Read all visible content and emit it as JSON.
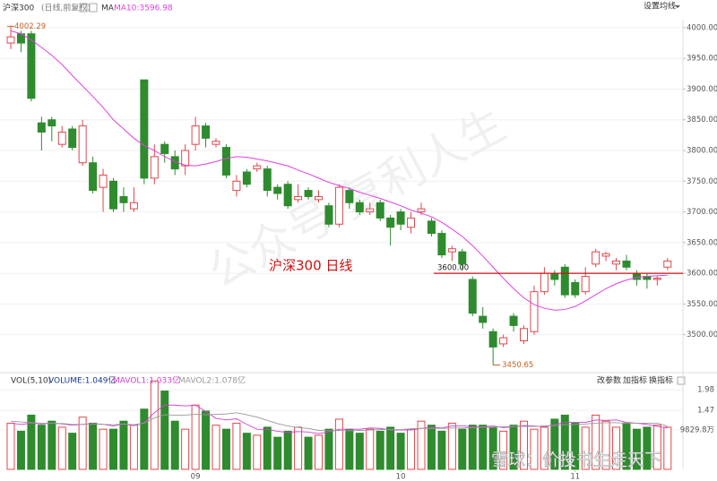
{
  "chart_data": [
    {
      "type": "candlestick",
      "title": "沪深300",
      "subtitle": "(日线,前复权)",
      "indicator": "MA",
      "annotation": "沪深300  日线",
      "categories": [
        null,
        null,
        null,
        null,
        null,
        null,
        null,
        null,
        null,
        null,
        null,
        null,
        null,
        null,
        null,
        null,
        null,
        null,
        "09",
        null,
        null,
        null,
        null,
        null,
        null,
        null,
        null,
        null,
        null,
        null,
        null,
        null,
        null,
        null,
        null,
        null,
        null,
        null,
        "10",
        null,
        null,
        null,
        null,
        null,
        null,
        null,
        null,
        null,
        null,
        null,
        null,
        null,
        null,
        null,
        null,
        "11",
        null,
        null,
        null,
        null,
        null,
        null,
        null,
        null,
        null
      ],
      "open": [
        3975,
        3990,
        3990,
        3845,
        3850,
        3810,
        3835,
        3780,
        3780,
        3740,
        3750,
        3725,
        3705,
        3915,
        3755,
        3810,
        3790,
        3775,
        3810,
        3840,
        3810,
        3805,
        3735,
        3765,
        3770,
        3770,
        3740,
        3745,
        3720,
        3735,
        3720,
        3710,
        3680,
        3735,
        3715,
        3700,
        3715,
        3690,
        3700,
        3675,
        3700,
        3685,
        3665,
        3635,
        3635,
        3590,
        3530,
        3505,
        3485,
        3530,
        3490,
        3505,
        3570,
        3600,
        3610,
        3585,
        3570,
        3615,
        3628,
        3615,
        3620,
        3600,
        3595,
        3590,
        3610
      ],
      "high": [
        4002.29,
        3995,
        3995,
        3855,
        3855,
        3840,
        3840,
        3850,
        3790,
        3770,
        3755,
        3740,
        3740,
        3915,
        3810,
        3815,
        3800,
        3810,
        3855,
        3845,
        3820,
        3810,
        3760,
        3770,
        3780,
        3775,
        3745,
        3750,
        3745,
        3740,
        3735,
        3715,
        3745,
        3740,
        3720,
        3715,
        3720,
        3695,
        3705,
        3700,
        3715,
        3690,
        3670,
        3645,
        3640,
        3595,
        3545,
        3510,
        3500,
        3535,
        3515,
        3580,
        3610,
        3605,
        3615,
        3590,
        3610,
        3640,
        3635,
        3625,
        3630,
        3605,
        3600,
        3595,
        3625
      ],
      "low": [
        3965,
        3960,
        3880,
        3800,
        3815,
        3805,
        3800,
        3775,
        3730,
        3700,
        3700,
        3700,
        3700,
        3745,
        3745,
        3780,
        3760,
        3760,
        3800,
        3805,
        3805,
        3755,
        3725,
        3740,
        3765,
        3725,
        3720,
        3705,
        3715,
        3720,
        3715,
        3675,
        3675,
        3705,
        3695,
        3695,
        3685,
        3645,
        3670,
        3665,
        3695,
        3660,
        3625,
        3620,
        3605,
        3530,
        3510,
        3450.65,
        3480,
        3505,
        3485,
        3500,
        3565,
        3580,
        3560,
        3560,
        3565,
        3610,
        3620,
        3605,
        3605,
        3580,
        3575,
        3580,
        3605
      ],
      "close": [
        3985,
        3975,
        3885,
        3830,
        3840,
        3830,
        3805,
        3840,
        3735,
        3760,
        3705,
        3715,
        3715,
        3755,
        3790,
        3795,
        3770,
        3800,
        3840,
        3820,
        3815,
        3760,
        3750,
        3745,
        3775,
        3735,
        3730,
        3710,
        3725,
        3725,
        3725,
        3680,
        3740,
        3715,
        3700,
        3705,
        3690,
        3675,
        3680,
        3690,
        3705,
        3665,
        3630,
        3640,
        3615,
        3535,
        3520,
        3480,
        3495,
        3515,
        3510,
        3570,
        3600,
        3590,
        3565,
        3565,
        3595,
        3635,
        3632,
        3620,
        3610,
        3590,
        3590,
        3592,
        3620
      ],
      "series": [
        {
          "name": "MA10:3596.98",
          "color": "#e040e0",
          "values": [
            3995,
            3990,
            3980,
            3968,
            3955,
            3940,
            3922,
            3905,
            3888,
            3870,
            3850,
            3835,
            3820,
            3808,
            3800,
            3790,
            3782,
            3776,
            3775,
            3778,
            3782,
            3787,
            3790,
            3789,
            3786,
            3783,
            3779,
            3775,
            3768,
            3762,
            3755,
            3748,
            3743,
            3738,
            3732,
            3727,
            3722,
            3716,
            3710,
            3703,
            3698,
            3692,
            3683,
            3672,
            3660,
            3645,
            3628,
            3610,
            3592,
            3575,
            3560,
            3549,
            3543,
            3540,
            3541,
            3546,
            3555,
            3565,
            3575,
            3583,
            3589,
            3593,
            3595,
            3596,
            3596.98
          ]
        }
      ],
      "up_color": "#e0474c",
      "down_color": "#2e8b2e",
      "hline": {
        "value": 3600,
        "label": "3600.00",
        "color": "#d01010"
      },
      "ylim": [
        3447,
        4013
      ],
      "yticks": [
        {
          "value": 3500,
          "label": "3500.00"
        },
        {
          "value": 3550,
          "label": "3550.00"
        },
        {
          "value": 3600,
          "label": "3600.00"
        },
        {
          "value": 3650,
          "label": "3650.00"
        },
        {
          "value": 3700,
          "label": "3700.00"
        },
        {
          "value": 3750,
          "label": "3750.00"
        },
        {
          "value": 3800,
          "label": "3800.00"
        },
        {
          "value": 3850,
          "label": "3850.00"
        },
        {
          "value": 3900,
          "label": "3900.00"
        },
        {
          "value": 3950,
          "label": "3950.00"
        },
        {
          "value": 4000,
          "label": "4000.00"
        }
      ],
      "grid": true
    },
    {
      "type": "bar",
      "title": "VOL(5,10)",
      "series": [
        {
          "name": "VOLUME:1.049亿",
          "color": "#1a3a8a",
          "values": [
            1.15,
            0.95,
            1.35,
            1.1,
            1.2,
            1.05,
            0.9,
            1.3,
            1.15,
            1.0,
            1.0,
            1.2,
            1.1,
            1.5,
            2.2,
            1.95,
            1.2,
            1.0,
            1.6,
            1.45,
            1.1,
            1.0,
            1.15,
            0.9,
            0.85,
            1.05,
            0.8,
            0.95,
            1.05,
            0.8,
            0.85,
            1.0,
            1.25,
            1.0,
            0.9,
            1.0,
            0.95,
            1.05,
            0.9,
            1.0,
            1.2,
            1.1,
            0.95,
            1.15,
            1.0,
            1.1,
            1.1,
            1.05,
            0.95,
            1.1,
            1.2,
            1.0,
            1.05,
            1.25,
            1.35,
            1.15,
            1.05,
            1.35,
            1.2,
            1.05,
            1.15,
            1.0,
            1.05,
            1.1,
            1.049
          ]
        },
        {
          "name": "MAVOL1:1.033亿",
          "color": "#d040d0",
          "values": [
            1.15,
            1.12,
            1.15,
            1.13,
            1.15,
            1.13,
            1.1,
            1.12,
            1.14,
            1.12,
            1.08,
            1.13,
            1.09,
            1.16,
            1.41,
            1.6,
            1.6,
            1.58,
            1.6,
            1.44,
            1.27,
            1.23,
            1.26,
            1.12,
            1.0,
            0.99,
            0.95,
            0.92,
            0.94,
            0.93,
            0.89,
            0.93,
            1.0,
            1.0,
            1.0,
            1.03,
            1.02,
            0.98,
            0.98,
            0.98,
            1.02,
            1.05,
            1.03,
            1.08,
            1.08,
            1.06,
            1.06,
            1.08,
            1.04,
            1.06,
            1.09,
            1.08,
            1.06,
            1.12,
            1.17,
            1.17,
            1.17,
            1.23,
            1.22,
            1.23,
            1.17,
            1.15,
            1.12,
            1.07,
            1.033
          ]
        },
        {
          "name": "MAVOL2:1.078亿",
          "color": "#999999",
          "values": [
            1.2,
            1.18,
            1.16,
            1.15,
            1.15,
            1.14,
            1.12,
            1.12,
            1.13,
            1.12,
            1.11,
            1.13,
            1.11,
            1.15,
            1.28,
            1.36,
            1.35,
            1.35,
            1.37,
            1.36,
            1.37,
            1.38,
            1.41,
            1.36,
            1.3,
            1.22,
            1.14,
            1.08,
            1.04,
            1.02,
            0.97,
            0.96,
            0.97,
            0.96,
            0.97,
            0.98,
            0.99,
            0.99,
            0.99,
            1.01,
            1.02,
            1.02,
            1.02,
            1.03,
            1.03,
            1.04,
            1.05,
            1.05,
            1.06,
            1.07,
            1.07,
            1.07,
            1.08,
            1.09,
            1.11,
            1.12,
            1.13,
            1.15,
            1.16,
            1.16,
            1.15,
            1.15,
            1.15,
            1.15,
            1.078
          ]
        }
      ],
      "ylim": [
        0,
        2.23
      ],
      "yticks": [
        {
          "value": 0.98298,
          "label": "9829.8万"
        },
        1.47,
        1.98
      ]
    }
  ],
  "controls": {
    "ma_settings": "设置均线",
    "edit_params": "改参数",
    "add_indicator": "加指标",
    "switch_indicator": "换指标"
  },
  "watermarks": {
    "center": "公众号  复利人生",
    "footer": "雪球：价投书生走天下"
  }
}
